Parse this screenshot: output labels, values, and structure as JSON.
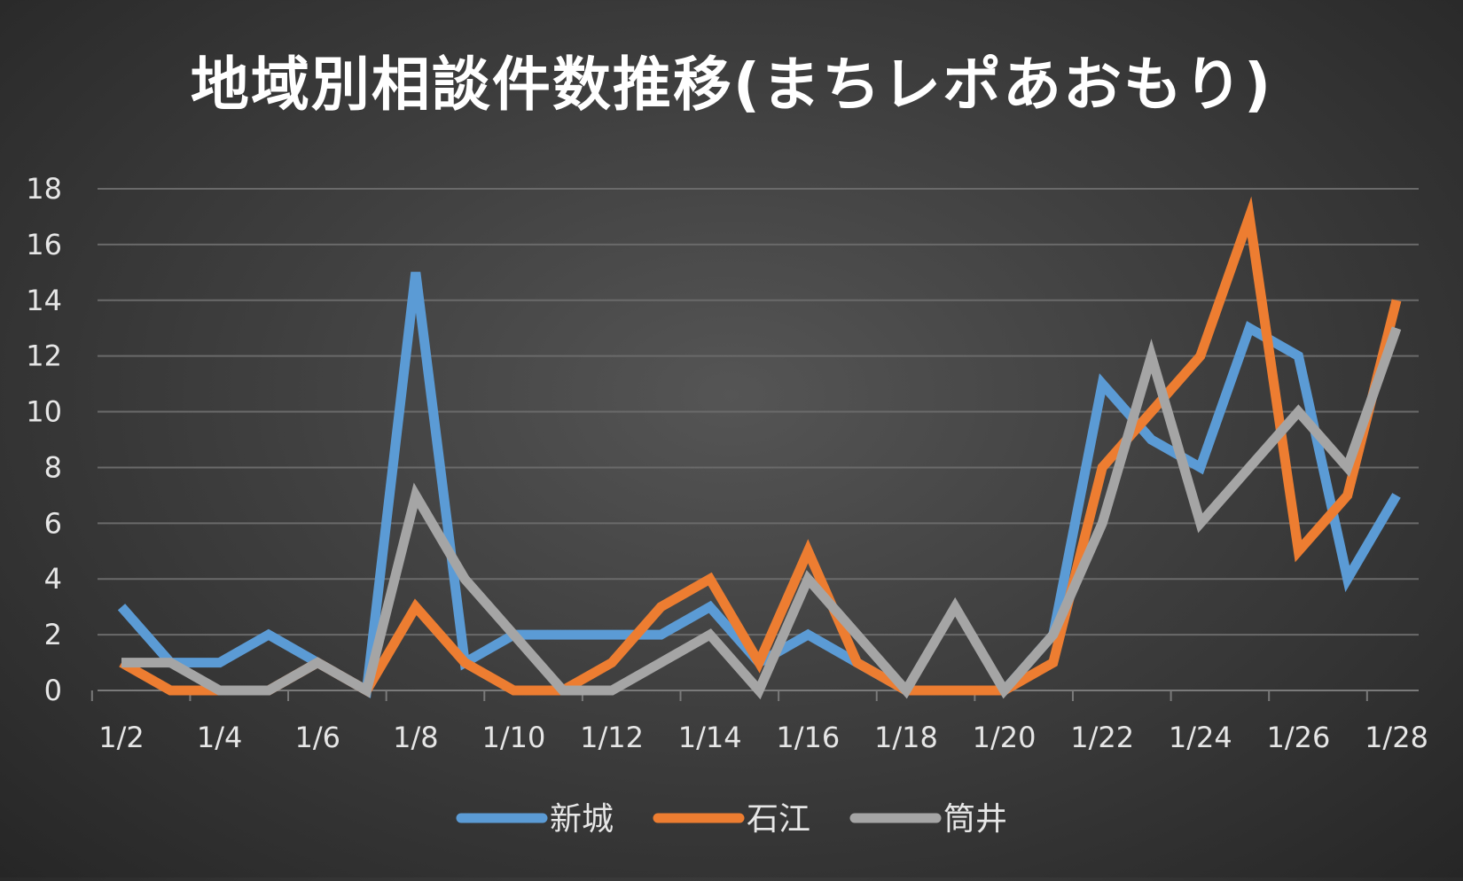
{
  "chart_data": {
    "type": "line",
    "title": "地域別相談件数推移(まちレポあおもり)",
    "xlabel": "",
    "ylabel": "",
    "ylim": [
      0,
      18
    ],
    "yticks": [
      "0",
      "2",
      "4",
      "6",
      "8",
      "10",
      "12",
      "14",
      "16",
      "18"
    ],
    "x": [
      "1/2",
      "1/3",
      "1/4",
      "1/5",
      "1/6",
      "1/7",
      "1/8",
      "1/9",
      "1/10",
      "1/11",
      "1/12",
      "1/13",
      "1/14",
      "1/15",
      "1/16",
      "1/17",
      "1/18",
      "1/19",
      "1/20",
      "1/21",
      "1/22",
      "1/23",
      "1/24",
      "1/25",
      "1/26",
      "1/27",
      "1/28"
    ],
    "xtick_labels": [
      "1/2",
      "1/4",
      "1/6",
      "1/8",
      "1/10",
      "1/12",
      "1/14",
      "1/16",
      "1/18",
      "1/20",
      "1/22",
      "1/24",
      "1/26",
      "1/28"
    ],
    "grid": true,
    "legend": "bottom",
    "series": [
      {
        "name": "新城",
        "color": "#5b9bd5",
        "values": [
          3,
          1,
          1,
          2,
          1,
          0,
          15,
          1,
          2,
          2,
          2,
          2,
          3,
          1,
          2,
          1,
          0,
          0,
          0,
          2,
          11,
          9,
          8,
          13,
          12,
          4,
          7
        ]
      },
      {
        "name": "石江",
        "color": "#ed7d31",
        "values": [
          1,
          0,
          0,
          0,
          1,
          0,
          3,
          1,
          0,
          0,
          1,
          3,
          4,
          1,
          5,
          1,
          0,
          0,
          0,
          1,
          8,
          10,
          12,
          17,
          5,
          7,
          14
        ]
      },
      {
        "name": "筒井",
        "color": "#a5a5a5",
        "values": [
          1,
          1,
          0,
          0,
          1,
          0,
          7,
          4,
          2,
          0,
          0,
          1,
          2,
          0,
          4,
          2,
          0,
          3,
          0,
          2,
          6,
          12,
          6,
          8,
          10,
          8,
          13
        ]
      }
    ]
  }
}
